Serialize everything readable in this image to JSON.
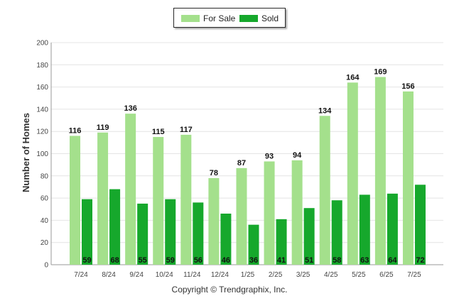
{
  "colors": {
    "for_sale": "#a4e08c",
    "sold": "#16a82c",
    "grid": "#e4e4e4",
    "axis": "#9a9a9a"
  },
  "legend": {
    "for_sale_label": "For Sale",
    "sold_label": "Sold",
    "placement": "top-center"
  },
  "copyright": "Copyright © Trendgraphix, Inc.",
  "chart_data": {
    "type": "bar",
    "ylabel": "Number of Homes",
    "xlabel": "",
    "ylim": [
      0,
      200
    ],
    "yticks": [
      0,
      20,
      40,
      60,
      80,
      100,
      120,
      140,
      160,
      180,
      200
    ],
    "grid": true,
    "categories": [
      "7/24",
      "8/24",
      "9/24",
      "10/24",
      "11/24",
      "12/24",
      "1/25",
      "2/25",
      "3/25",
      "4/25",
      "5/25",
      "6/25",
      "7/25"
    ],
    "series": [
      {
        "name": "For Sale",
        "values": [
          116,
          119,
          136,
          115,
          117,
          78,
          87,
          93,
          94,
          134,
          164,
          169,
          156
        ]
      },
      {
        "name": "Sold",
        "values": [
          59,
          68,
          55,
          59,
          56,
          46,
          36,
          41,
          51,
          58,
          63,
          64,
          72
        ]
      }
    ]
  }
}
